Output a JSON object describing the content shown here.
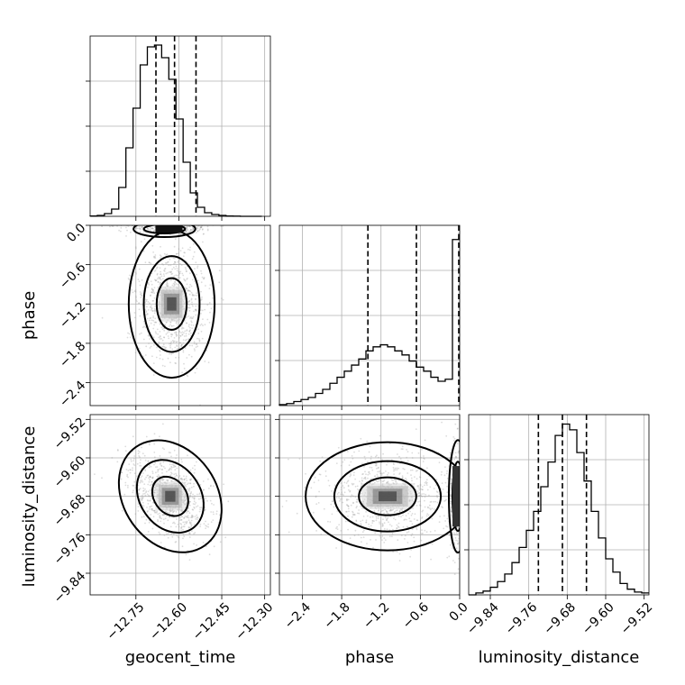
{
  "chart_data": {
    "type": "corner",
    "parameters": [
      "geocent_time",
      "phase",
      "luminosity_distance"
    ],
    "grid": true,
    "panels": [
      {
        "kind": "hist",
        "param": "geocent_time",
        "xlim": [
          -12.91,
          -12.28
        ],
        "xticks": [
          -12.75,
          -12.6,
          -12.45,
          -12.3
        ],
        "xtick_labels": [
          "−12.75",
          "−12.60",
          "−12.45",
          "−12.30"
        ],
        "quantiles": [
          -12.68,
          -12.615,
          -12.54
        ],
        "bin_edges": [
          -12.91,
          -12.885,
          -12.86,
          -12.835,
          -12.81,
          -12.785,
          -12.76,
          -12.735,
          -12.71,
          -12.685,
          -12.66,
          -12.635,
          -12.61,
          -12.585,
          -12.56,
          -12.535,
          -12.51,
          -12.485,
          -12.46,
          -12.435,
          -12.41,
          -12.385,
          -12.36,
          -12.335,
          -12.31
        ],
        "counts": [
          0.2,
          0.5,
          1.5,
          4,
          16,
          38,
          60,
          84,
          94,
          95,
          88,
          76,
          54,
          30,
          13,
          5,
          2,
          1,
          0.5,
          0.2,
          0.1,
          0,
          0,
          0
        ],
        "ymax": 100
      },
      {
        "kind": "hist",
        "param": "phase",
        "xlim": [
          -2.75,
          0.0
        ],
        "xticks": [
          -2.4,
          -1.8,
          -1.2,
          -0.6,
          0.0
        ],
        "xtick_labels": [
          "−2.4",
          "−1.8",
          "−1.2",
          "−0.6",
          "0.0"
        ],
        "quantiles": [
          -1.4,
          -0.66,
          0.0
        ],
        "bin_edges": [
          -2.75,
          -2.64,
          -2.53,
          -2.42,
          -2.31,
          -2.2,
          -2.09,
          -1.98,
          -1.87,
          -1.76,
          -1.65,
          -1.54,
          -1.43,
          -1.32,
          -1.21,
          -1.1,
          -0.99,
          -0.88,
          -0.77,
          -0.66,
          -0.55,
          -0.44,
          -0.33,
          -0.22,
          -0.11,
          0.0
        ],
        "counts": [
          0.5,
          1,
          2,
          3,
          4,
          6,
          8,
          11,
          14,
          17,
          20,
          23,
          27,
          29,
          30,
          29,
          27,
          25,
          22,
          19,
          17,
          14,
          12,
          13,
          82
        ],
        "ymax": 89
      },
      {
        "kind": "hist",
        "param": "luminosity_distance",
        "xlim": [
          -9.885,
          -9.51
        ],
        "xticks": [
          -9.84,
          -9.76,
          -9.68,
          -9.6,
          -9.52
        ],
        "xtick_labels": [
          "−9.84",
          "−9.76",
          "−9.68",
          "−9.60",
          "−9.52"
        ],
        "quantiles": [
          -9.74,
          -9.69,
          -9.64
        ],
        "bin_edges": [
          -9.885,
          -9.87,
          -9.855,
          -9.84,
          -9.825,
          -9.81,
          -9.795,
          -9.78,
          -9.765,
          -9.75,
          -9.735,
          -9.72,
          -9.705,
          -9.69,
          -9.675,
          -9.66,
          -9.645,
          -9.63,
          -9.615,
          -9.6,
          -9.585,
          -9.57,
          -9.555,
          -9.54,
          -9.525,
          -9.51
        ],
        "counts": [
          0,
          1,
          2,
          4,
          7,
          11,
          17,
          25,
          34,
          44,
          57,
          70,
          84,
          90,
          87,
          75,
          60,
          44,
          30,
          19,
          12,
          6,
          3,
          1.5,
          1
        ],
        "ymax": 95
      },
      {
        "kind": "2d",
        "x": "geocent_time",
        "y": "phase",
        "center": [
          -12.625,
          -1.2
        ],
        "spread": [
          0.06,
          0.45
        ]
      },
      {
        "kind": "2d",
        "x": "geocent_time",
        "y": "luminosity_distance",
        "center": [
          -12.63,
          -9.68
        ],
        "spread": [
          0.065,
          0.05
        ]
      },
      {
        "kind": "2d",
        "x": "phase",
        "y": "luminosity_distance",
        "center": [
          -1.1,
          -9.68
        ],
        "spread": [
          0.5,
          0.045
        ]
      }
    ],
    "ylims": {
      "phase": [
        -2.75,
        0.0
      ],
      "luminosity_distance": [
        -9.885,
        -9.51
      ]
    },
    "yticks": {
      "phase": [
        0.0,
        -0.6,
        -1.2,
        -1.8,
        -2.4
      ],
      "luminosity_distance": [
        -9.52,
        -9.6,
        -9.68,
        -9.76,
        -9.84
      ]
    },
    "ytick_labels": {
      "phase": [
        "0.0",
        "−0.6",
        "−1.2",
        "−1.8",
        "−2.4"
      ],
      "luminosity_distance": [
        "−9.52",
        "−9.60",
        "−9.68",
        "−9.76",
        "−9.84"
      ]
    },
    "axis_labels": {
      "x": [
        "geocent_time",
        "phase",
        "luminosity_distance"
      ],
      "y": [
        "phase",
        "luminosity_distance"
      ]
    }
  },
  "colors": {
    "line": "#000000",
    "grid": "#b0b0b0",
    "points": "#9a9a9a"
  }
}
